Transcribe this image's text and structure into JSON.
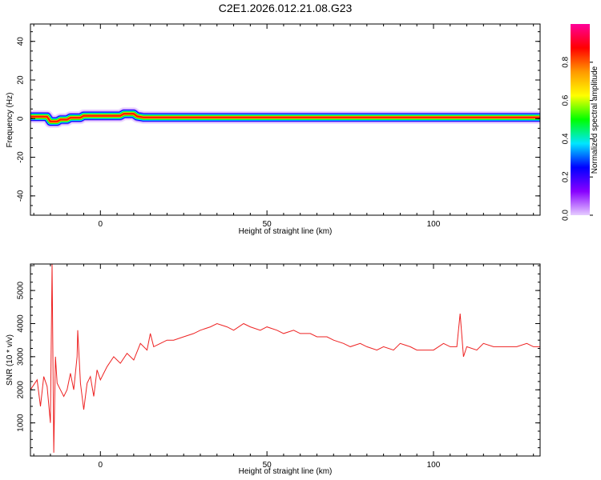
{
  "figure": {
    "title": "C2E1.2026.012.21.08.G23"
  },
  "chart_data": [
    {
      "type": "heatmap",
      "xlabel": "Height of straight line (km)",
      "ylabel": "Frequency (Hz)",
      "xlim": [
        -21,
        132
      ],
      "ylim": [
        -50,
        49
      ],
      "xticks": [
        0,
        50,
        100
      ],
      "yticks": [
        -40,
        -20,
        0,
        20,
        40
      ],
      "grid": false,
      "colorbar": {
        "label": "Normalized spectral amplitude",
        "range": [
          0,
          1
        ],
        "ticks": [
          "0.0",
          "0.2",
          "0.4",
          "0.6",
          "0.8"
        ],
        "colormap": [
          "#e6ccff",
          "#8800ff",
          "#0000ff",
          "#00e6ff",
          "#00ff00",
          "#ffff00",
          "#ff9900",
          "#ff0000",
          "#ff0099"
        ]
      },
      "ridge": {
        "x": [
          -21,
          -16,
          -15,
          -13,
          -12,
          -10,
          -9,
          -6,
          -5,
          -1,
          0,
          6,
          7,
          10,
          11,
          13,
          14,
          60,
          100,
          104,
          106,
          108,
          110,
          132
        ],
        "frequency": [
          1,
          1,
          -1.5,
          -1.5,
          -0.5,
          -0.5,
          0.5,
          0.5,
          1.5,
          1.5,
          1.5,
          1.5,
          2.5,
          2.5,
          1.2,
          0.6,
          0.6,
          0.6,
          0.6,
          0.6,
          0.6,
          0.6,
          0.6,
          0.6
        ]
      }
    },
    {
      "type": "line",
      "xlabel": "Height of straight line (km)",
      "ylabel": "SNR (10 * v/v)",
      "xlim": [
        -21,
        132
      ],
      "ylim": [
        0,
        5800
      ],
      "xticks": [
        0,
        50,
        100
      ],
      "yticks": [
        1000,
        2000,
        3000,
        4000,
        5000
      ],
      "grid": false,
      "series": [
        {
          "color": "#ee2222",
          "x": [
            -21,
            -19,
            -18,
            -17,
            -16,
            -15,
            -14.5,
            -14,
            -13.5,
            -13,
            -12,
            -11,
            -10,
            -9,
            -8,
            -7,
            -6.8,
            -6,
            -5,
            -4,
            -3,
            -2,
            -1,
            0,
            2,
            4,
            6,
            8,
            10,
            12,
            14,
            15,
            16,
            18,
            20,
            22,
            25,
            28,
            30,
            33,
            35,
            38,
            40,
            43,
            45,
            48,
            50,
            53,
            55,
            58,
            60,
            63,
            65,
            68,
            70,
            73,
            75,
            78,
            80,
            83,
            85,
            88,
            90,
            93,
            95,
            98,
            100,
            103,
            105,
            107,
            108,
            109,
            110,
            113,
            115,
            118,
            120,
            123,
            125,
            128,
            130,
            132
          ],
          "values": [
            2000,
            2300,
            1500,
            2400,
            2100,
            1000,
            5800,
            100,
            3000,
            2200,
            2000,
            1800,
            2000,
            2500,
            2000,
            3000,
            3800,
            2200,
            1400,
            2200,
            2400,
            1800,
            2600,
            2300,
            2700,
            3000,
            2800,
            3100,
            2900,
            3400,
            3200,
            3700,
            3300,
            3400,
            3500,
            3500,
            3600,
            3700,
            3800,
            3900,
            4000,
            3900,
            3800,
            4000,
            3900,
            3800,
            3900,
            3800,
            3700,
            3800,
            3700,
            3700,
            3600,
            3600,
            3500,
            3400,
            3300,
            3400,
            3300,
            3200,
            3300,
            3200,
            3400,
            3300,
            3200,
            3200,
            3200,
            3400,
            3300,
            3300,
            4300,
            3000,
            3300,
            3200,
            3400,
            3300,
            3300,
            3300,
            3300,
            3400,
            3300,
            3300
          ]
        }
      ]
    }
  ]
}
